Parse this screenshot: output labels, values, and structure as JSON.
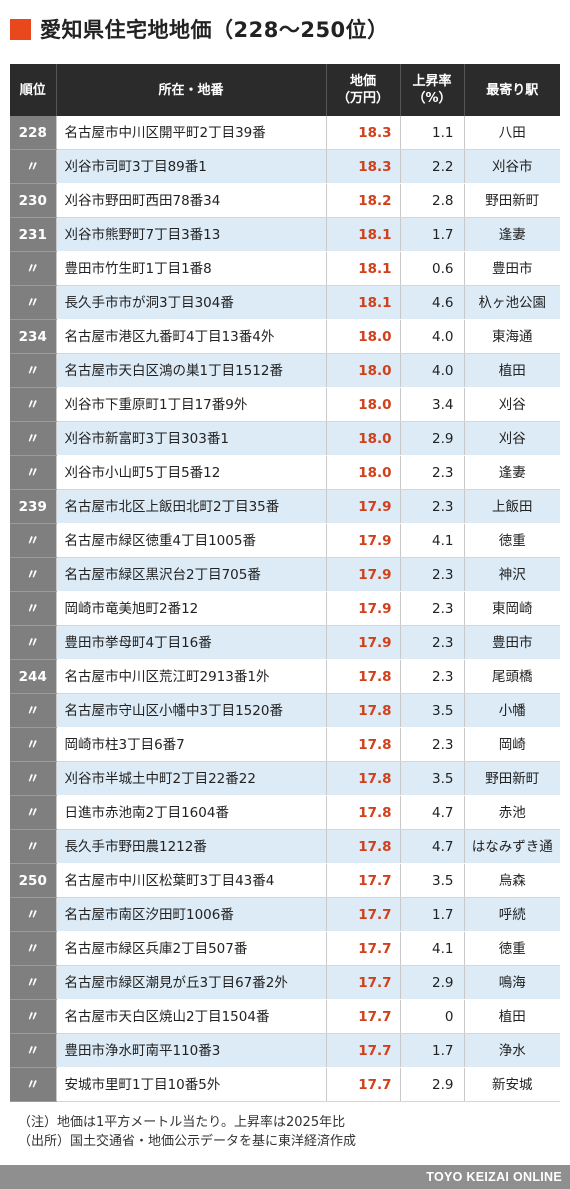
{
  "title": "愛知県住宅地地価（228〜250位）",
  "headers": {
    "rank": "順位",
    "address": "所在・地番",
    "price": "地価\n（万円）",
    "rate": "上昇率\n（%）",
    "station": "最寄り駅"
  },
  "rows": [
    {
      "rank": "228",
      "address": "名古屋市中川区開平町2丁目39番",
      "price": "18.3",
      "rate": "1.1",
      "station": "八田"
    },
    {
      "rank": "〃",
      "address": "刈谷市司町3丁目89番1",
      "price": "18.3",
      "rate": "2.2",
      "station": "刈谷市"
    },
    {
      "rank": "230",
      "address": "刈谷市野田町西田78番34",
      "price": "18.2",
      "rate": "2.8",
      "station": "野田新町"
    },
    {
      "rank": "231",
      "address": "刈谷市熊野町7丁目3番13",
      "price": "18.1",
      "rate": "1.7",
      "station": "逢妻"
    },
    {
      "rank": "〃",
      "address": "豊田市竹生町1丁目1番8",
      "price": "18.1",
      "rate": "0.6",
      "station": "豊田市"
    },
    {
      "rank": "〃",
      "address": "長久手市市が洞3丁目304番",
      "price": "18.1",
      "rate": "4.6",
      "station": "杁ヶ池公園"
    },
    {
      "rank": "234",
      "address": "名古屋市港区九番町4丁目13番4外",
      "price": "18.0",
      "rate": "4.0",
      "station": "東海通"
    },
    {
      "rank": "〃",
      "address": "名古屋市天白区鴻の巣1丁目1512番",
      "price": "18.0",
      "rate": "4.0",
      "station": "植田"
    },
    {
      "rank": "〃",
      "address": "刈谷市下重原町1丁目17番9外",
      "price": "18.0",
      "rate": "3.4",
      "station": "刈谷"
    },
    {
      "rank": "〃",
      "address": "刈谷市新富町3丁目303番1",
      "price": "18.0",
      "rate": "2.9",
      "station": "刈谷"
    },
    {
      "rank": "〃",
      "address": "刈谷市小山町5丁目5番12",
      "price": "18.0",
      "rate": "2.3",
      "station": "逢妻"
    },
    {
      "rank": "239",
      "address": "名古屋市北区上飯田北町2丁目35番",
      "price": "17.9",
      "rate": "2.3",
      "station": "上飯田"
    },
    {
      "rank": "〃",
      "address": "名古屋市緑区徳重4丁目1005番",
      "price": "17.9",
      "rate": "4.1",
      "station": "徳重"
    },
    {
      "rank": "〃",
      "address": "名古屋市緑区黒沢台2丁目705番",
      "price": "17.9",
      "rate": "2.3",
      "station": "神沢"
    },
    {
      "rank": "〃",
      "address": "岡崎市竜美旭町2番12",
      "price": "17.9",
      "rate": "2.3",
      "station": "東岡崎"
    },
    {
      "rank": "〃",
      "address": "豊田市挙母町4丁目16番",
      "price": "17.9",
      "rate": "2.3",
      "station": "豊田市"
    },
    {
      "rank": "244",
      "address": "名古屋市中川区荒江町2913番1外",
      "price": "17.8",
      "rate": "2.3",
      "station": "尾頭橋"
    },
    {
      "rank": "〃",
      "address": "名古屋市守山区小幡中3丁目1520番",
      "price": "17.8",
      "rate": "3.5",
      "station": "小幡"
    },
    {
      "rank": "〃",
      "address": "岡崎市柱3丁目6番7",
      "price": "17.8",
      "rate": "2.3",
      "station": "岡崎"
    },
    {
      "rank": "〃",
      "address": "刈谷市半城土中町2丁目22番22",
      "price": "17.8",
      "rate": "3.5",
      "station": "野田新町"
    },
    {
      "rank": "〃",
      "address": "日進市赤池南2丁目1604番",
      "price": "17.8",
      "rate": "4.7",
      "station": "赤池"
    },
    {
      "rank": "〃",
      "address": "長久手市野田農1212番",
      "price": "17.8",
      "rate": "4.7",
      "station": "はなみずき通"
    },
    {
      "rank": "250",
      "address": "名古屋市中川区松葉町3丁目43番4",
      "price": "17.7",
      "rate": "3.5",
      "station": "烏森"
    },
    {
      "rank": "〃",
      "address": "名古屋市南区汐田町1006番",
      "price": "17.7",
      "rate": "1.7",
      "station": "呼続"
    },
    {
      "rank": "〃",
      "address": "名古屋市緑区兵庫2丁目507番",
      "price": "17.7",
      "rate": "4.1",
      "station": "徳重"
    },
    {
      "rank": "〃",
      "address": "名古屋市緑区潮見が丘3丁目67番2外",
      "price": "17.7",
      "rate": "2.9",
      "station": "鳴海"
    },
    {
      "rank": "〃",
      "address": "名古屋市天白区焼山2丁目1504番",
      "price": "17.7",
      "rate": "0",
      "station": "植田"
    },
    {
      "rank": "〃",
      "address": "豊田市浄水町南平110番3",
      "price": "17.7",
      "rate": "1.7",
      "station": "浄水"
    },
    {
      "rank": "〃",
      "address": "安城市里町1丁目10番5外",
      "price": "17.7",
      "rate": "2.9",
      "station": "新安城"
    }
  ],
  "notes": [
    "（注）地価は1平方メートル当たり。上昇率は2025年比",
    "（出所）国土交通省・地価公示データを基に東洋経済作成"
  ],
  "footer": "TOYO KEIZAI ONLINE",
  "colors": {
    "accent": "#e8481c",
    "header_bg": "#2b2b2b",
    "rank_bg": "#7f7f7f",
    "stripe": "#dcebf6",
    "price_text": "#d0401c"
  }
}
